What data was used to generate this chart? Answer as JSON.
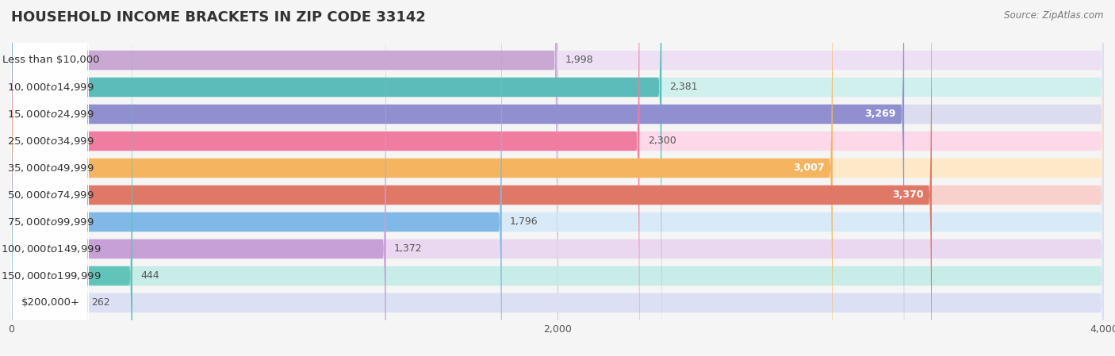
{
  "title": "HOUSEHOLD INCOME BRACKETS IN ZIP CODE 33142",
  "source_text": "Source: ZipAtlas.com",
  "categories": [
    "Less than $10,000",
    "$10,000 to $14,999",
    "$15,000 to $24,999",
    "$25,000 to $34,999",
    "$35,000 to $49,999",
    "$50,000 to $74,999",
    "$75,000 to $99,999",
    "$100,000 to $149,999",
    "$150,000 to $199,999",
    "$200,000+"
  ],
  "values": [
    1998,
    2381,
    3269,
    2300,
    3007,
    3370,
    1796,
    1372,
    444,
    262
  ],
  "bar_colors": [
    "#c9a8d4",
    "#5bbcba",
    "#9090d0",
    "#f07ca0",
    "#f5b560",
    "#e07868",
    "#80b8e8",
    "#c8a0d8",
    "#60c4b8",
    "#b8c0e8"
  ],
  "bar_bg_colors": [
    "#ede0f5",
    "#d0f0ee",
    "#dcdcf0",
    "#fcd8e8",
    "#fde8c8",
    "#f8d0cc",
    "#d8eaf8",
    "#ead8f0",
    "#c8ece8",
    "#dce0f5"
  ],
  "xlim": [
    0,
    4000
  ],
  "xticks": [
    0,
    2000,
    4000
  ],
  "background_color": "#f5f5f5",
  "bar_height": 0.68,
  "label_values_above_threshold": 2500,
  "value_label_color_inside": "#ffffff",
  "value_label_color_outside": "#555555"
}
